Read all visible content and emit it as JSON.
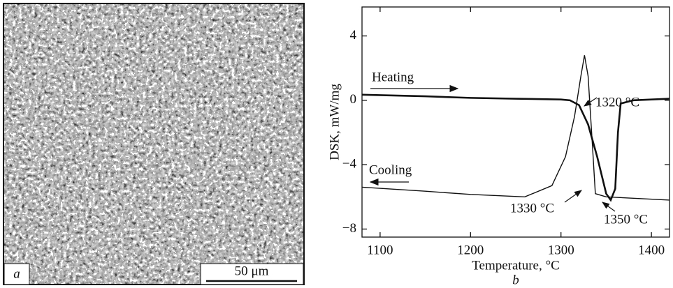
{
  "image_panel": {
    "label": "a",
    "scale_bar": "50 μm"
  },
  "chart_data": {
    "type": "line",
    "panel_label": "b",
    "x_label": "Temperature, °C",
    "y_label": "DSK, mW/mg",
    "xlim": [
      1080,
      1420
    ],
    "xticks": [
      1100,
      1200,
      1300,
      1400
    ],
    "ylim": [
      -8.5,
      5.8
    ],
    "yticks": [
      {
        "value": -8,
        "label": "−8"
      },
      {
        "value": -4,
        "label": "−4"
      },
      0,
      4
    ],
    "series": [
      {
        "name": "Heating",
        "color": "#111111",
        "line_width": 2.6,
        "x": [
          1080,
          1150,
          1200,
          1250,
          1300,
          1310,
          1320,
          1330,
          1340,
          1350,
          1355,
          1360,
          1363,
          1366,
          1380,
          1420
        ],
        "values": [
          0.35,
          0.25,
          0.15,
          0.1,
          0.05,
          0,
          -0.3,
          -1.5,
          -3.5,
          -5.8,
          -6.2,
          -5.5,
          -2,
          -0.2,
          0,
          0.1
        ]
      },
      {
        "name": "Cooling",
        "color": "#111111",
        "line_width": 1.4,
        "x": [
          1080,
          1150,
          1200,
          1260,
          1290,
          1305,
          1315,
          1322,
          1326,
          1330,
          1335,
          1338,
          1350,
          1420
        ],
        "values": [
          -5.4,
          -5.65,
          -5.85,
          -6.0,
          -5.3,
          -3.5,
          -1,
          1.5,
          2.8,
          1.5,
          -3,
          -5.8,
          -6.0,
          -6.2
        ]
      }
    ],
    "annotations": [
      "1320 °C",
      "1330 °C",
      "1350 °C"
    ]
  }
}
